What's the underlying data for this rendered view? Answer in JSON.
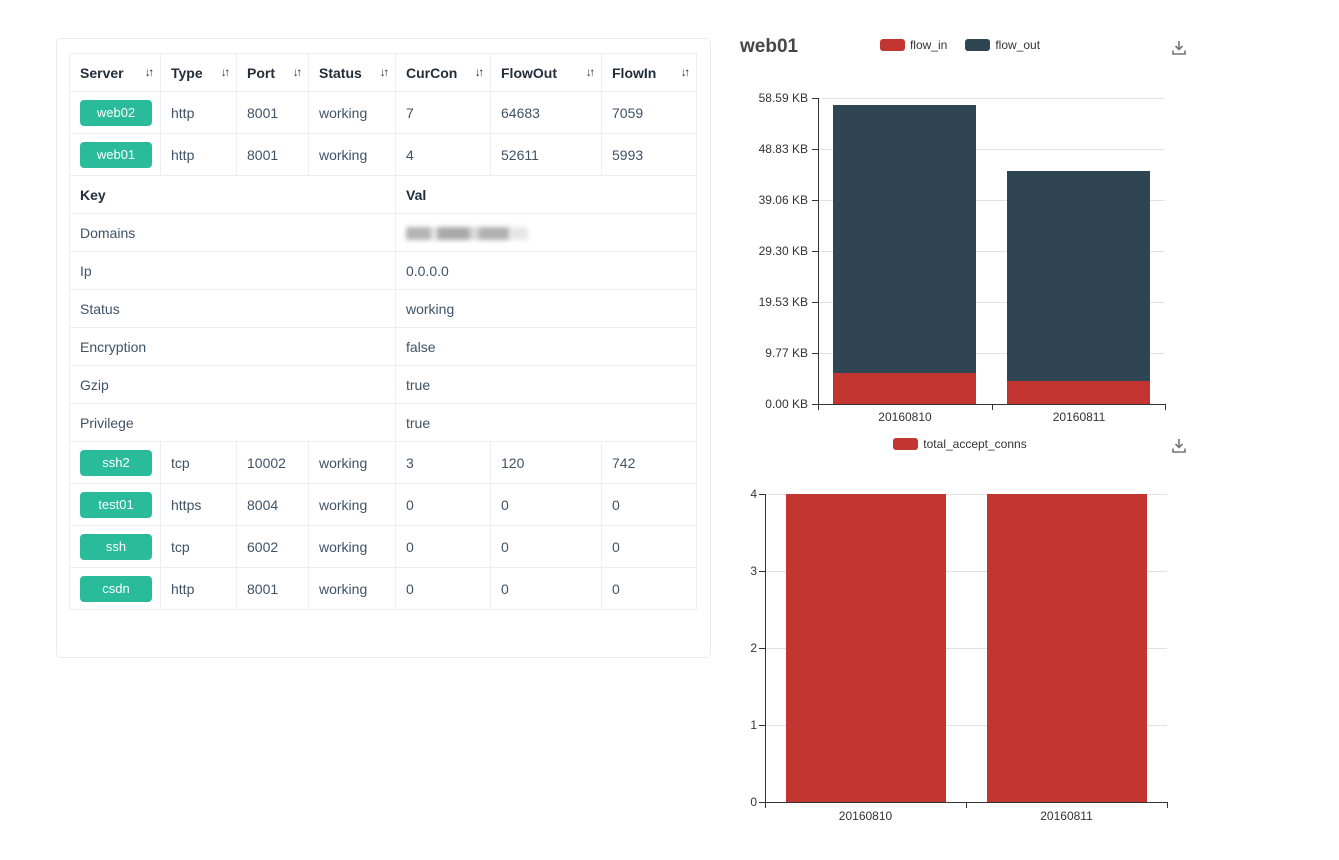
{
  "table": {
    "columns": [
      {
        "label": "Server",
        "sortable": true
      },
      {
        "label": "Type",
        "sortable": true
      },
      {
        "label": "Port",
        "sortable": true
      },
      {
        "label": "Status",
        "sortable": true
      },
      {
        "label": "CurCon",
        "sortable": true
      },
      {
        "label": "FlowOut",
        "sortable": true
      },
      {
        "label": "FlowIn",
        "sortable": true
      }
    ],
    "top_rows": [
      {
        "server": "web02",
        "type": "http",
        "port": "8001",
        "status": "working",
        "curcon": "7",
        "flowout": "64683",
        "flowin": "7059"
      },
      {
        "server": "web01",
        "type": "http",
        "port": "8001",
        "status": "working",
        "curcon": "4",
        "flowout": "52611",
        "flowin": "5993"
      }
    ],
    "detail_header": {
      "key": "Key",
      "val": "Val"
    },
    "detail_rows": [
      {
        "key": "Domains",
        "value": "",
        "redacted": true
      },
      {
        "key": "Ip",
        "value": "0.0.0.0"
      },
      {
        "key": "Status",
        "value": "working"
      },
      {
        "key": "Encryption",
        "value": "false"
      },
      {
        "key": "Gzip",
        "value": "true"
      },
      {
        "key": "Privilege",
        "value": "true"
      }
    ],
    "bottom_rows": [
      {
        "server": "ssh2",
        "type": "tcp",
        "port": "10002",
        "status": "working",
        "curcon": "3",
        "flowout": "120",
        "flowin": "742"
      },
      {
        "server": "test01",
        "type": "https",
        "port": "8004",
        "status": "working",
        "curcon": "0",
        "flowout": "0",
        "flowin": "0"
      },
      {
        "server": "ssh",
        "type": "tcp",
        "port": "6002",
        "status": "working",
        "curcon": "0",
        "flowout": "0",
        "flowin": "0"
      },
      {
        "server": "csdn",
        "type": "http",
        "port": "8001",
        "status": "working",
        "curcon": "0",
        "flowout": "0",
        "flowin": "0"
      }
    ],
    "server_button_color": "#2abb9b"
  },
  "chart_data": [
    {
      "type": "bar",
      "stacked": true,
      "title": "web01",
      "categories": [
        "20160810",
        "20160811"
      ],
      "series": [
        {
          "name": "flow_in",
          "color": "#c23531",
          "values_kb": [
            5.85,
            4.4
          ]
        },
        {
          "name": "flow_out",
          "color": "#2f4554",
          "values_kb": [
            51.38,
            40.2
          ]
        }
      ],
      "y_ticks": [
        "58.59 KB",
        "48.83 KB",
        "39.06 KB",
        "29.30 KB",
        "19.53 KB",
        "9.77 KB",
        "0.00 KB"
      ],
      "y_max_kb": 58.59,
      "ylim_kb": [
        0,
        58.59
      ],
      "legend_position": "top-center",
      "grid": true,
      "toolbox": [
        "save-as-image"
      ]
    },
    {
      "type": "bar",
      "stacked": false,
      "title": "",
      "categories": [
        "20160810",
        "20160811"
      ],
      "series": [
        {
          "name": "total_accept_conns",
          "color": "#c23531",
          "values": [
            4,
            4
          ]
        }
      ],
      "y_ticks": [
        "4",
        "3",
        "2",
        "1",
        "0"
      ],
      "y_max": 4,
      "ylim": [
        0,
        4
      ],
      "legend_position": "top-center",
      "grid": true,
      "toolbox": [
        "save-as-image"
      ]
    }
  ]
}
